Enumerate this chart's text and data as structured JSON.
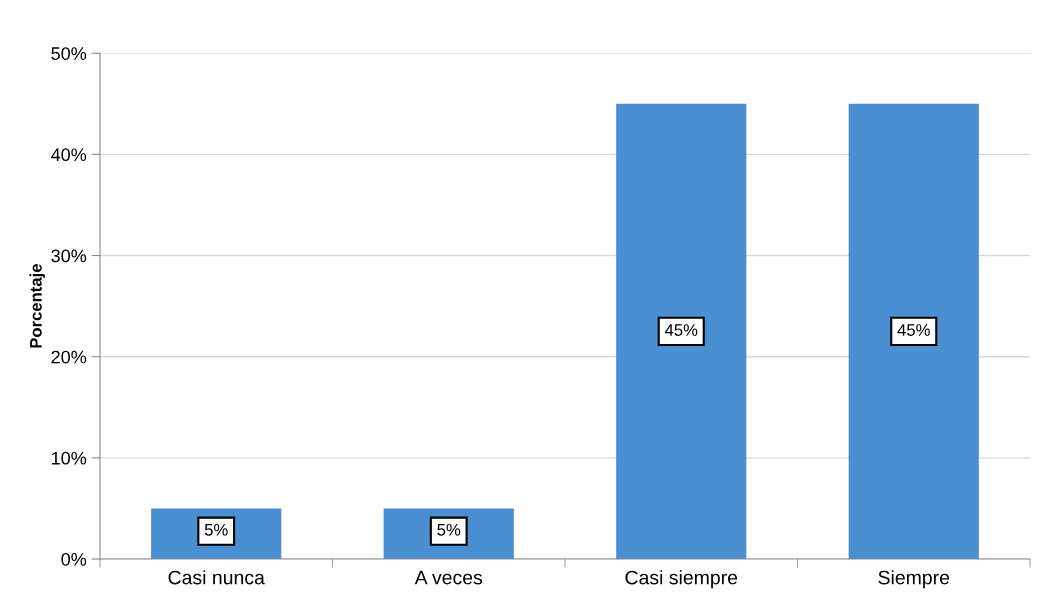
{
  "chart_data": {
    "type": "bar",
    "ylabel": "Porcentaje",
    "categories": [
      "Casi nunca",
      "A veces",
      "Casi siempre",
      "Siempre"
    ],
    "values": [
      5,
      5,
      45,
      45
    ],
    "color": "#4a8fd1",
    "value_labels": [
      "5%",
      "5%",
      "45%",
      "45%"
    ],
    "ylim": [
      0,
      50
    ],
    "yticks": [
      {
        "value": 0,
        "label": "0%"
      },
      {
        "value": 10,
        "label": "10%"
      },
      {
        "value": 20,
        "label": "20%"
      },
      {
        "value": 30,
        "label": "30%"
      },
      {
        "value": 40,
        "label": "40%"
      },
      {
        "value": 50,
        "label": "50%"
      }
    ],
    "grid": "y",
    "legend": false
  }
}
